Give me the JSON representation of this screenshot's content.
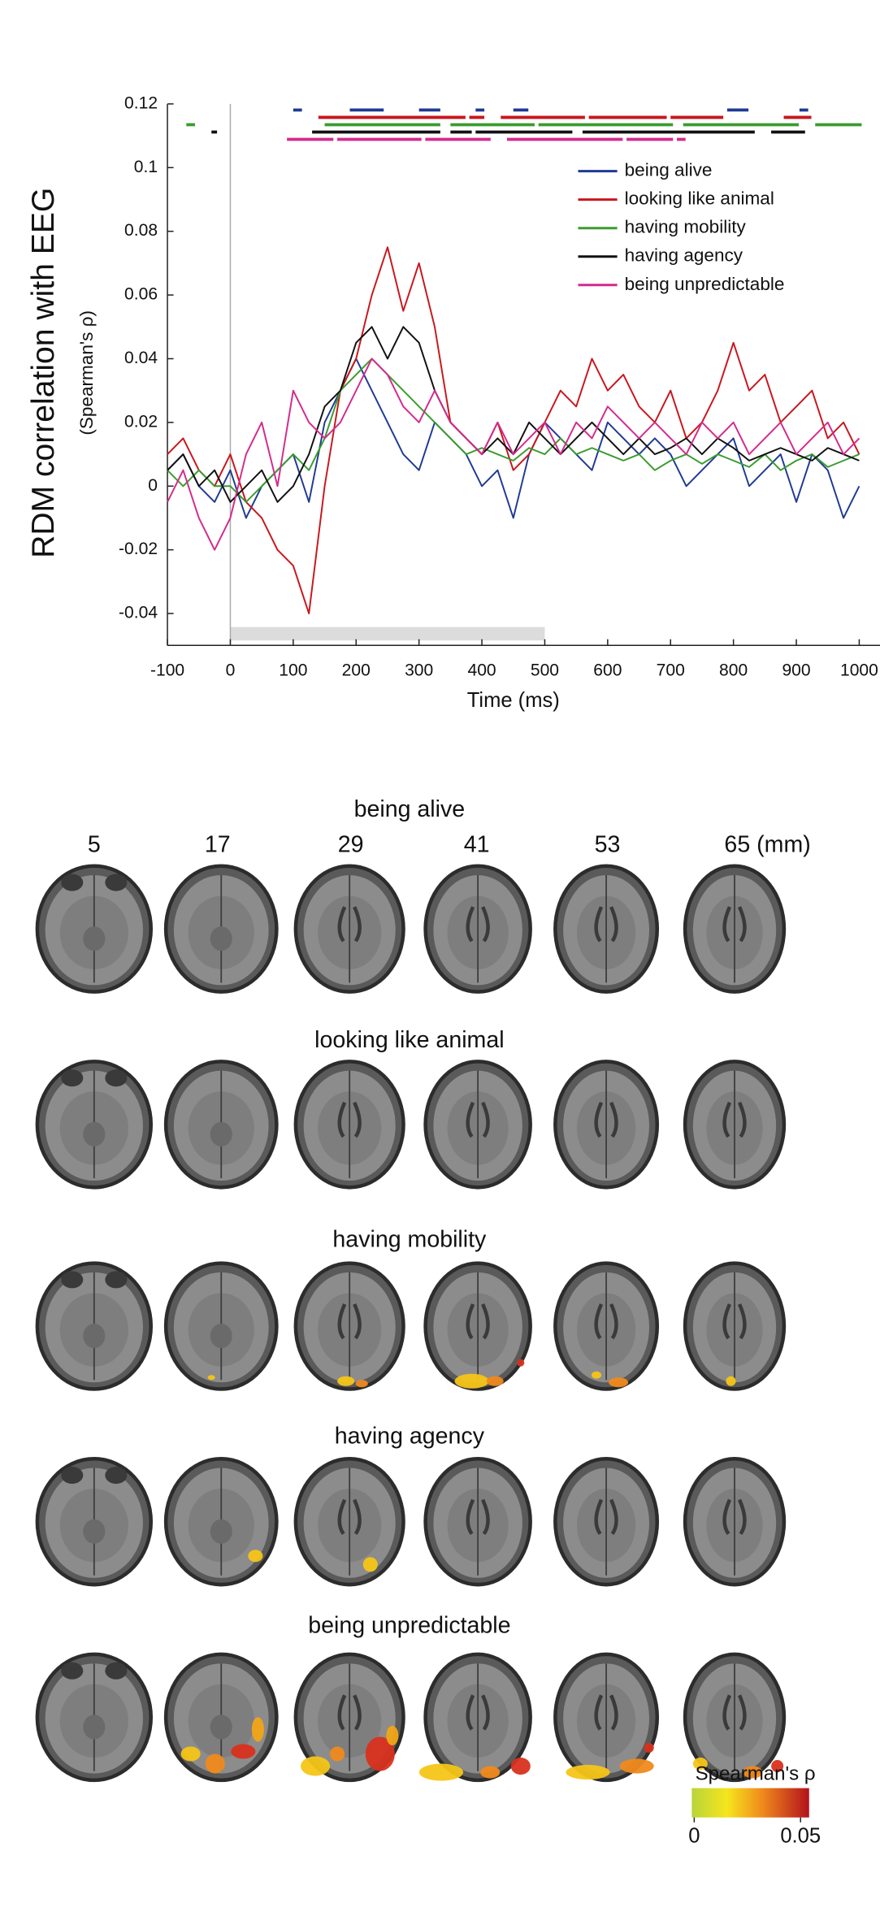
{
  "chart_data": {
    "type": "line",
    "y_label": "RDM correlation with EEG",
    "y_sublabel": "(Spearman's ρ)",
    "x_label": "Time (ms)",
    "x": [
      -100,
      -75,
      -50,
      -25,
      0,
      25,
      50,
      75,
      100,
      125,
      150,
      175,
      200,
      225,
      250,
      275,
      300,
      325,
      350,
      375,
      400,
      425,
      450,
      475,
      500,
      525,
      550,
      575,
      600,
      625,
      650,
      675,
      700,
      725,
      750,
      775,
      800,
      825,
      850,
      875,
      900,
      925,
      950,
      975,
      1000
    ],
    "xlim": [
      -100,
      1000
    ],
    "xticks": [
      -100,
      0,
      100,
      200,
      300,
      400,
      500,
      600,
      700,
      800,
      900,
      1000
    ],
    "ylim": [
      -0.05,
      0.12
    ],
    "yticks": [
      -0.04,
      -0.02,
      0,
      0.02,
      0.04,
      0.06,
      0.08,
      0.1,
      0.12
    ],
    "shaded_interval": [
      0,
      500
    ],
    "series": [
      {
        "name": "being alive",
        "color": "#1f3a93",
        "values": [
          0.005,
          0.01,
          0.0,
          -0.005,
          0.005,
          -0.01,
          0.0,
          0.005,
          0.01,
          -0.005,
          0.02,
          0.03,
          0.04,
          0.03,
          0.02,
          0.01,
          0.005,
          0.02,
          0.015,
          0.01,
          0.0,
          0.005,
          -0.01,
          0.01,
          0.02,
          0.015,
          0.01,
          0.005,
          0.02,
          0.015,
          0.01,
          0.015,
          0.01,
          0.0,
          0.005,
          0.01,
          0.015,
          0.0,
          0.005,
          0.01,
          -0.005,
          0.01,
          0.005,
          -0.01,
          0.0
        ],
        "significance": [
          [
            100,
            110
          ],
          [
            190,
            240
          ],
          [
            300,
            330
          ],
          [
            390,
            400
          ],
          [
            450,
            470
          ],
          [
            790,
            820
          ],
          [
            905,
            915
          ]
        ]
      },
      {
        "name": "looking like animal",
        "color": "#c8161d",
        "values": [
          0.01,
          0.015,
          0.005,
          0.0,
          0.01,
          -0.005,
          -0.01,
          -0.02,
          -0.025,
          -0.04,
          0.0,
          0.03,
          0.04,
          0.06,
          0.075,
          0.055,
          0.07,
          0.05,
          0.02,
          0.015,
          0.01,
          0.02,
          0.005,
          0.01,
          0.02,
          0.03,
          0.025,
          0.04,
          0.03,
          0.035,
          0.025,
          0.02,
          0.03,
          0.015,
          0.02,
          0.03,
          0.045,
          0.03,
          0.035,
          0.02,
          0.025,
          0.03,
          0.015,
          0.02,
          0.01
        ],
        "significance": [
          [
            140,
            370
          ],
          [
            380,
            400
          ],
          [
            430,
            560
          ],
          [
            570,
            690
          ],
          [
            700,
            780
          ],
          [
            880,
            920
          ]
        ]
      },
      {
        "name": "having mobility",
        "color": "#3a9c2e",
        "values": [
          0.005,
          0.0,
          0.005,
          0.0,
          0.0,
          -0.005,
          0.0,
          0.005,
          0.01,
          0.005,
          0.015,
          0.03,
          0.035,
          0.04,
          0.035,
          0.03,
          0.025,
          0.02,
          0.015,
          0.01,
          0.012,
          0.01,
          0.008,
          0.012,
          0.01,
          0.015,
          0.01,
          0.012,
          0.01,
          0.008,
          0.01,
          0.005,
          0.008,
          0.01,
          0.007,
          0.01,
          0.008,
          0.006,
          0.01,
          0.005,
          0.008,
          0.01,
          0.006,
          0.008,
          0.01
        ],
        "significance": [
          [
            -70,
            -60
          ],
          [
            150,
            330
          ],
          [
            350,
            480
          ],
          [
            490,
            700
          ],
          [
            720,
            900
          ],
          [
            930,
            1000
          ]
        ]
      },
      {
        "name": "having agency",
        "color": "#111111",
        "values": [
          0.005,
          0.01,
          0.0,
          0.005,
          -0.005,
          0.0,
          0.005,
          -0.005,
          0.0,
          0.01,
          0.025,
          0.03,
          0.045,
          0.05,
          0.04,
          0.05,
          0.045,
          0.03,
          0.02,
          0.015,
          0.01,
          0.015,
          0.01,
          0.02,
          0.015,
          0.01,
          0.015,
          0.02,
          0.015,
          0.01,
          0.015,
          0.01,
          0.012,
          0.015,
          0.01,
          0.015,
          0.012,
          0.008,
          0.01,
          0.012,
          0.01,
          0.008,
          0.012,
          0.01,
          0.008
        ],
        "significance": [
          [
            -30,
            -25
          ],
          [
            130,
            330
          ],
          [
            350,
            380
          ],
          [
            390,
            540
          ],
          [
            560,
            830
          ],
          [
            860,
            910
          ]
        ]
      },
      {
        "name": "being unpredictable",
        "color": "#d42a8c",
        "values": [
          -0.005,
          0.005,
          -0.01,
          -0.02,
          -0.01,
          0.01,
          0.02,
          0.0,
          0.03,
          0.02,
          0.015,
          0.02,
          0.03,
          0.04,
          0.035,
          0.025,
          0.02,
          0.03,
          0.02,
          0.015,
          0.01,
          0.02,
          0.01,
          0.015,
          0.02,
          0.01,
          0.02,
          0.015,
          0.025,
          0.02,
          0.015,
          0.02,
          0.015,
          0.01,
          0.02,
          0.015,
          0.02,
          0.01,
          0.015,
          0.02,
          0.01,
          0.015,
          0.02,
          0.01,
          0.015
        ],
        "significance": [
          [
            90,
            160
          ],
          [
            170,
            300
          ],
          [
            310,
            410
          ],
          [
            440,
            620
          ],
          [
            630,
            700
          ],
          [
            710,
            720
          ]
        ]
      }
    ]
  },
  "brain_maps": {
    "columns": [
      "5",
      "17",
      "29",
      "41",
      "53",
      "65 (mm)"
    ],
    "rows": [
      "being alive",
      "looking like animal",
      "having mobility",
      "having agency",
      "being unpredictable"
    ],
    "colorbar": {
      "label": "Spearman's ρ",
      "ticks": [
        0,
        0.05
      ]
    }
  }
}
